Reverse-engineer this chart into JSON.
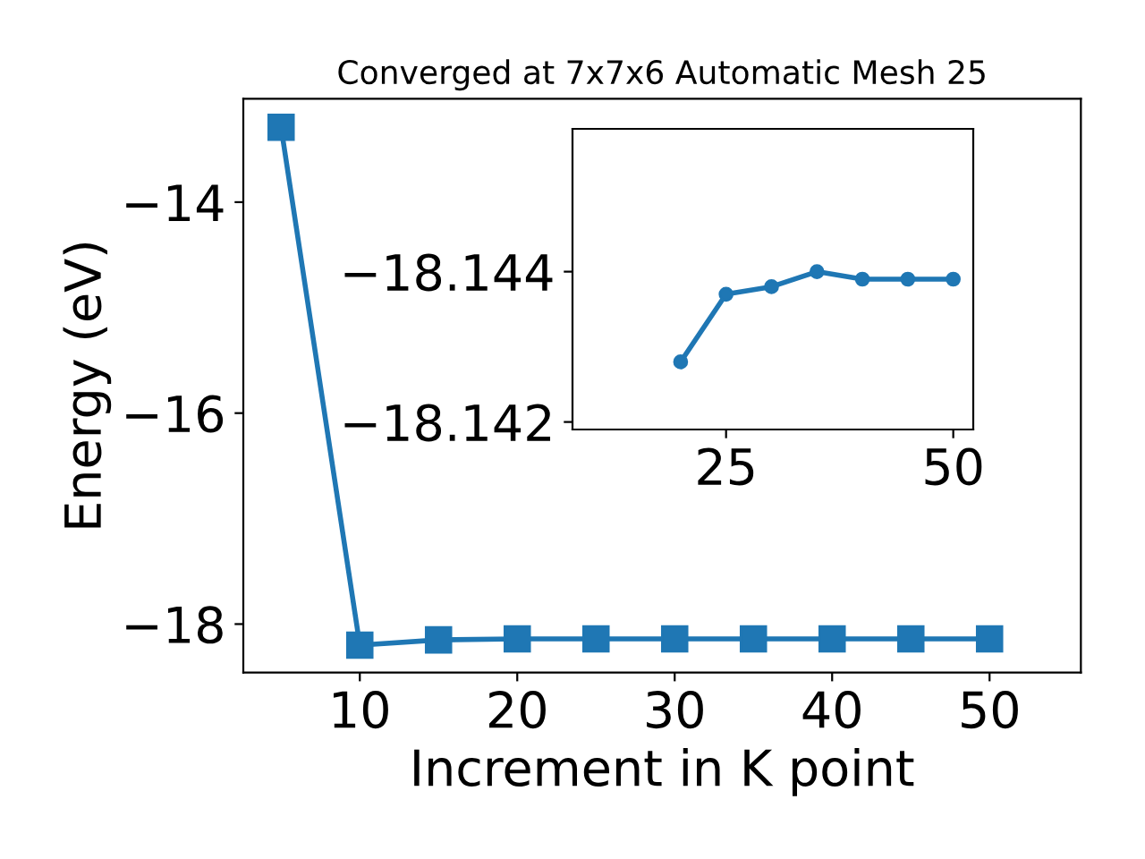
{
  "chart_data": [
    {
      "type": "line",
      "title": "Converged at 7x7x6 Automatic Mesh 25",
      "xlabel": "Increment in K point",
      "ylabel": "Energy (eV)",
      "marker": "square",
      "series": [
        {
          "color": "#1f77b4",
          "x": [
            5,
            10,
            15,
            20,
            25,
            30,
            35,
            40,
            45,
            50
          ],
          "values": [
            -13.29,
            -18.2,
            -18.15,
            -18.14,
            -18.14,
            -18.14,
            -18.14,
            -18.14,
            -18.14,
            -18.14
          ]
        }
      ],
      "xlim": [
        2.6,
        55.8
      ],
      "ylim": [
        -18.46,
        -13.02
      ],
      "xticks": [
        10,
        20,
        30,
        40,
        50
      ],
      "yticks": [
        -18,
        -16,
        -14
      ],
      "grid": false,
      "legend": false
    },
    {
      "type": "line",
      "marker": "circle",
      "series": [
        {
          "color": "#1f77b4",
          "x": [
            20,
            25,
            30,
            35,
            40,
            45,
            50
          ],
          "values": [
            -18.1428,
            -18.1437,
            -18.1438,
            -18.144,
            -18.1439,
            -18.1439,
            -18.1439
          ]
        }
      ],
      "xlim": [
        8.1,
        52.2
      ],
      "ylim": [
        -18.1419,
        -18.1459
      ],
      "xticks": [
        25,
        50
      ],
      "yticks": [
        -18.144,
        -18.142
      ],
      "grid": false,
      "legend": false
    }
  ]
}
